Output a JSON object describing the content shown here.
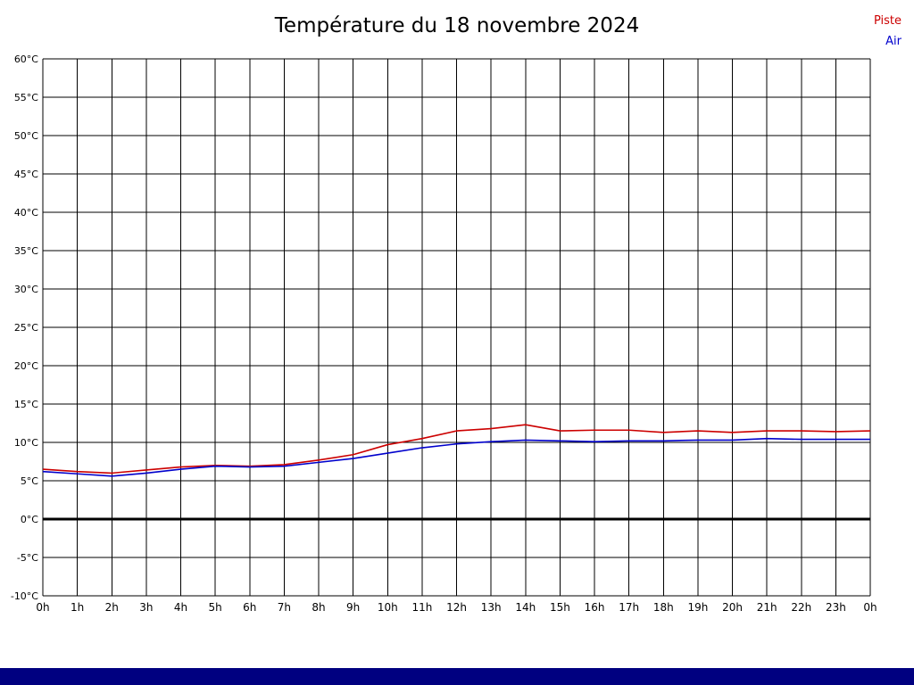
{
  "chart_data": {
    "type": "line",
    "title": "Température du 18 novembre 2024",
    "xlabel": "",
    "ylabel": "",
    "ylim": [
      -10,
      60
    ],
    "ytick_step": 5,
    "grid": true,
    "legend_position": "top-right",
    "x_ticks": [
      "0h",
      "1h",
      "2h",
      "3h",
      "4h",
      "5h",
      "6h",
      "7h",
      "8h",
      "9h",
      "10h",
      "11h",
      "12h",
      "13h",
      "14h",
      "15h",
      "16h",
      "17h",
      "18h",
      "19h",
      "20h",
      "21h",
      "22h",
      "23h",
      "0h"
    ],
    "y_ticks": [
      "60°C",
      "55°C",
      "50°C",
      "45°C",
      "40°C",
      "35°C",
      "30°C",
      "25°C",
      "20°C",
      "15°C",
      "10°C",
      "5°C",
      "0°C",
      "-5°C",
      "-10°C"
    ],
    "series": [
      {
        "name": "Piste",
        "color": "#cc0000",
        "values": [
          6.5,
          6.2,
          6.0,
          6.4,
          6.8,
          7.0,
          6.9,
          7.1,
          7.7,
          8.4,
          9.7,
          10.5,
          11.5,
          11.8,
          12.3,
          11.5,
          11.6,
          11.6,
          11.3,
          11.5,
          11.3,
          11.5,
          11.5,
          11.4,
          11.5
        ]
      },
      {
        "name": "Air",
        "color": "#0000cc",
        "values": [
          6.2,
          5.9,
          5.6,
          6.0,
          6.5,
          6.9,
          6.8,
          6.9,
          7.4,
          7.9,
          8.6,
          9.3,
          9.8,
          10.1,
          10.3,
          10.2,
          10.1,
          10.2,
          10.2,
          10.3,
          10.3,
          10.5,
          10.4,
          10.4,
          10.4
        ]
      }
    ],
    "zero_line_value": 0
  },
  "colors": {
    "grid": "#000000",
    "zero_line": "#000000",
    "footer_bar": "#000080",
    "piste": "#cc0000",
    "air": "#0000cc"
  }
}
